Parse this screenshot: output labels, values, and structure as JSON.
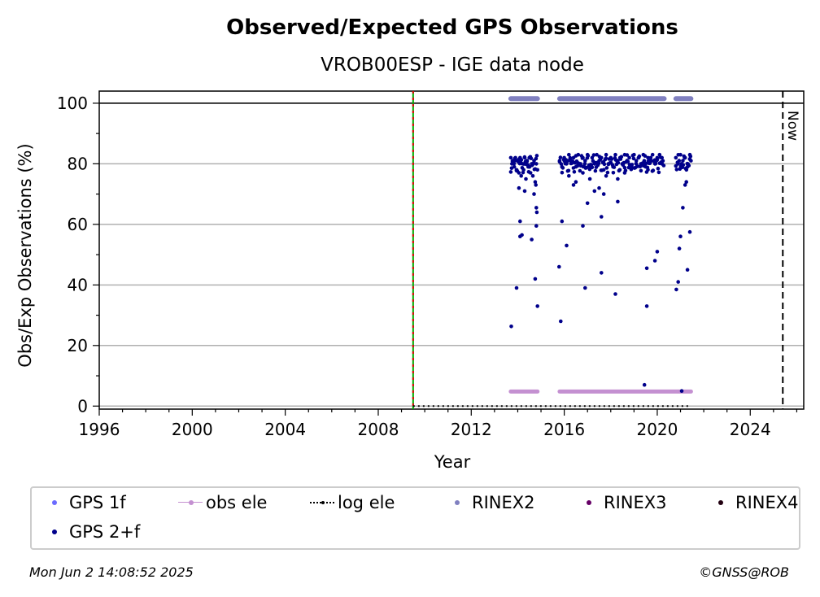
{
  "chart_data": {
    "type": "scatter",
    "title": "Observed/Expected GPS Observations",
    "subtitle": "VROB00ESP - IGE data node",
    "xlabel": "Year",
    "ylabel": "Obs/Exp Observations (%)",
    "xlim": [
      1996,
      2026.3
    ],
    "ylim": [
      -1,
      104
    ],
    "x_ticks": [
      "1996",
      "2000",
      "2004",
      "2008",
      "2012",
      "2016",
      "2020",
      "2024"
    ],
    "y_ticks": [
      "0",
      "20",
      "40",
      "60",
      "80",
      "100"
    ],
    "grid": "y",
    "vertical_markers": [
      {
        "x": 2009.5,
        "style": "red-green dashed"
      },
      {
        "x": 2025.4,
        "style": "black dashed",
        "label": "Now"
      }
    ],
    "rinex2_segments": [
      [
        2013.7,
        2014.85
      ],
      [
        2015.8,
        2020.3
      ],
      [
        2020.8,
        2021.45
      ]
    ],
    "obs_ele_segments": [
      [
        2013.7,
        2014.85
      ],
      [
        2015.8,
        2021.45
      ]
    ],
    "obs_ele_value": 4.8,
    "log_ele_range": [
      2009.5,
      2021.45
    ],
    "series": [
      {
        "name": "GPS 2+f",
        "color": "#00008b",
        "points": [
          [
            2013.7,
            82
          ],
          [
            2013.75,
            80
          ],
          [
            2013.8,
            81
          ],
          [
            2013.85,
            79
          ],
          [
            2013.9,
            82
          ],
          [
            2013.95,
            78
          ],
          [
            2014.0,
            81
          ],
          [
            2014.05,
            77
          ],
          [
            2014.1,
            82
          ],
          [
            2014.15,
            76
          ],
          [
            2014.2,
            80
          ],
          [
            2014.25,
            78
          ],
          [
            2014.3,
            82
          ],
          [
            2014.35,
            75
          ],
          [
            2014.4,
            81
          ],
          [
            2014.45,
            79
          ],
          [
            2014.5,
            82
          ],
          [
            2014.55,
            77
          ],
          [
            2014.6,
            80
          ],
          [
            2014.65,
            76
          ],
          [
            2014.7,
            81
          ],
          [
            2014.75,
            74
          ],
          [
            2014.8,
            80
          ],
          [
            2014.85,
            78
          ],
          [
            2013.72,
            26.3
          ],
          [
            2013.95,
            39
          ],
          [
            2014.1,
            56
          ],
          [
            2014.18,
            56.5
          ],
          [
            2014.1,
            61
          ],
          [
            2014.6,
            55
          ],
          [
            2014.8,
            59.5
          ],
          [
            2014.82,
            64
          ],
          [
            2014.8,
            65.5
          ],
          [
            2014.75,
            42
          ],
          [
            2014.85,
            33
          ],
          [
            2014.05,
            72
          ],
          [
            2014.3,
            71
          ],
          [
            2014.7,
            70
          ],
          [
            2014.78,
            73
          ],
          [
            2015.8,
            81
          ],
          [
            2015.9,
            79
          ],
          [
            2016.0,
            82
          ],
          [
            2016.1,
            80
          ],
          [
            2016.2,
            83
          ],
          [
            2016.3,
            81
          ],
          [
            2016.4,
            82
          ],
          [
            2016.5,
            79
          ],
          [
            2016.6,
            83
          ],
          [
            2016.7,
            80
          ],
          [
            2016.8,
            82
          ],
          [
            2016.9,
            81
          ],
          [
            2017.0,
            83
          ],
          [
            2017.1,
            79
          ],
          [
            2017.2,
            82
          ],
          [
            2017.3,
            80
          ],
          [
            2017.4,
            83
          ],
          [
            2017.5,
            81
          ],
          [
            2017.6,
            82
          ],
          [
            2017.7,
            78
          ],
          [
            2017.8,
            83
          ],
          [
            2017.9,
            80
          ],
          [
            2018.0,
            82
          ],
          [
            2018.1,
            79
          ],
          [
            2018.2,
            83
          ],
          [
            2018.3,
            81
          ],
          [
            2018.4,
            82
          ],
          [
            2018.5,
            80
          ],
          [
            2018.6,
            83
          ],
          [
            2018.7,
            81
          ],
          [
            2018.8,
            82
          ],
          [
            2018.9,
            79
          ],
          [
            2019.0,
            83
          ],
          [
            2019.1,
            81
          ],
          [
            2019.2,
            82
          ],
          [
            2019.3,
            80
          ],
          [
            2019.4,
            83
          ],
          [
            2019.5,
            79
          ],
          [
            2019.6,
            82
          ],
          [
            2019.7,
            81
          ],
          [
            2019.8,
            83
          ],
          [
            2019.9,
            80
          ],
          [
            2020.0,
            82
          ],
          [
            2020.1,
            83
          ],
          [
            2020.2,
            82
          ],
          [
            2016.2,
            76
          ],
          [
            2016.5,
            74
          ],
          [
            2016.8,
            77
          ],
          [
            2017.1,
            75
          ],
          [
            2017.5,
            72
          ],
          [
            2017.8,
            76
          ],
          [
            2018.3,
            75
          ],
          [
            2018.6,
            77
          ],
          [
            2019.6,
            78
          ],
          [
            2016.4,
            73
          ],
          [
            2017.3,
            71
          ],
          [
            2017.7,
            70
          ],
          [
            2015.78,
            46
          ],
          [
            2015.85,
            28
          ],
          [
            2015.9,
            61
          ],
          [
            2016.1,
            53
          ],
          [
            2016.8,
            59.5
          ],
          [
            2016.9,
            39
          ],
          [
            2017.0,
            67
          ],
          [
            2017.6,
            62.5
          ],
          [
            2017.6,
            44
          ],
          [
            2018.2,
            37
          ],
          [
            2018.3,
            67.5
          ],
          [
            2019.45,
            7
          ],
          [
            2019.55,
            33
          ],
          [
            2019.55,
            45.5
          ],
          [
            2019.9,
            48
          ],
          [
            2020.0,
            51
          ],
          [
            2020.8,
            82
          ],
          [
            2020.9,
            80
          ],
          [
            2021.0,
            83
          ],
          [
            2021.1,
            81
          ],
          [
            2021.2,
            82
          ],
          [
            2021.3,
            79
          ],
          [
            2021.4,
            83
          ],
          [
            2021.45,
            81
          ],
          [
            2020.82,
            38.5
          ],
          [
            2020.9,
            41
          ],
          [
            2020.95,
            52
          ],
          [
            2021.0,
            56
          ],
          [
            2021.1,
            65.5
          ],
          [
            2021.25,
            74
          ],
          [
            2021.3,
            45
          ],
          [
            2021.4,
            57.5
          ],
          [
            2021.2,
            73
          ],
          [
            2021.05,
            5
          ]
        ]
      },
      {
        "name": "obs ele",
        "color": "#c490d1"
      },
      {
        "name": "log ele",
        "color": "#000000"
      },
      {
        "name": "RINEX2",
        "color": "#8080c0"
      }
    ]
  },
  "legend": {
    "items": [
      {
        "label": "GPS 1f",
        "color": "#6b6bff"
      },
      {
        "label": "obs ele",
        "color": "#c490d1"
      },
      {
        "label": "log ele",
        "color": "#000000"
      },
      {
        "label": "RINEX2",
        "color": "#8080c0"
      },
      {
        "label": "RINEX3",
        "color": "#660066"
      },
      {
        "label": "RINEX4",
        "color": "#220011"
      },
      {
        "label": "GPS 2+f",
        "color": "#00008b"
      }
    ]
  },
  "now_label": "Now",
  "footer": {
    "timestamp": "Mon Jun  2 14:08:52 2025",
    "credit": "©GNSS@ROB"
  }
}
